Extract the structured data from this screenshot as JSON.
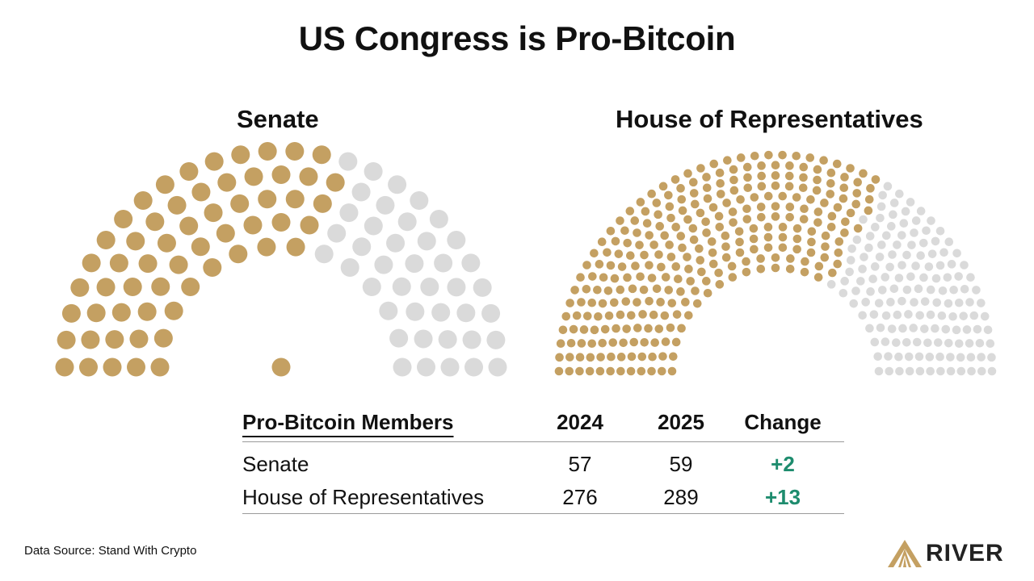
{
  "title": "US Congress is Pro-Bitcoin",
  "colors": {
    "pro": "#C4A062",
    "other": "#DADADA",
    "positive": "#1E8C6E",
    "text": "#111111"
  },
  "chart_data": [
    {
      "type": "parliament",
      "title": "Senate",
      "total_seats": 100,
      "series": [
        {
          "name": "Pro-Bitcoin",
          "value": 59,
          "color": "#C4A062"
        },
        {
          "name": "Other",
          "value": 41,
          "color": "#DADADA"
        }
      ]
    },
    {
      "type": "parliament",
      "title": "House of Representatives",
      "total_seats": 435,
      "series": [
        {
          "name": "Pro-Bitcoin",
          "value": 289,
          "color": "#C4A062"
        },
        {
          "name": "Other",
          "value": 146,
          "color": "#DADADA"
        }
      ]
    }
  ],
  "table": {
    "headers": {
      "label": "Pro-Bitcoin Members",
      "y2024": "2024",
      "y2025": "2025",
      "change": "Change"
    },
    "rows": [
      {
        "label": "Senate",
        "y2024": "57",
        "y2025": "59",
        "change": "+2"
      },
      {
        "label": "House of Representatives",
        "y2024": "276",
        "y2025": "289",
        "change": "+13"
      }
    ]
  },
  "footer": {
    "source": "Data Source: Stand With Crypto",
    "logo_text": "RIVER",
    "logo_icon": "river-logo-icon"
  }
}
